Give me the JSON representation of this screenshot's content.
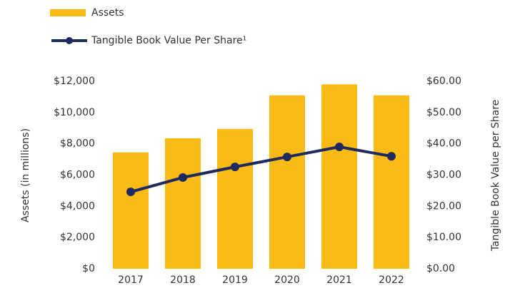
{
  "chart_data": {
    "type": "bar_line",
    "categories": [
      "2017",
      "2018",
      "2019",
      "2020",
      "2021",
      "2022"
    ],
    "series": [
      {
        "name": "Assets",
        "color": "#fbbb17",
        "type": "bar",
        "axis": "y",
        "values": [
          7450,
          8350,
          8950,
          11100,
          11800,
          11100
        ]
      },
      {
        "name": "Tangible Book Value Per Share¹",
        "color": "#1e2a5e",
        "type": "line",
        "axis": "y2",
        "values": [
          24.6,
          29.2,
          32.6,
          35.8,
          39.0,
          36.0
        ]
      }
    ],
    "y_label": "Assets (in millions)",
    "y2_label": "Tangible Book Value per Share",
    "ylim": [
      0,
      12000
    ],
    "yticks": [
      {
        "value": 0,
        "label": "$0"
      },
      {
        "value": 2000,
        "label": "$2,000"
      },
      {
        "value": 4000,
        "label": "$4,000"
      },
      {
        "value": 6000,
        "label": "$6,000"
      },
      {
        "value": 8000,
        "label": "$8,000"
      },
      {
        "value": 10000,
        "label": "$10,000"
      },
      {
        "value": 12000,
        "label": "$12,000"
      }
    ],
    "y2lim": [
      0,
      60
    ],
    "y2ticks": [
      {
        "value": 0,
        "label": "$0.00"
      },
      {
        "value": 10,
        "label": "$10.00"
      },
      {
        "value": 20,
        "label": "$20.00"
      },
      {
        "value": 30,
        "label": "$30.00"
      },
      {
        "value": 40,
        "label": "$40.00"
      },
      {
        "value": 50,
        "label": "$50.00"
      },
      {
        "value": 60,
        "label": "$60.00"
      }
    ],
    "grid": false,
    "legend": "top-left"
  }
}
